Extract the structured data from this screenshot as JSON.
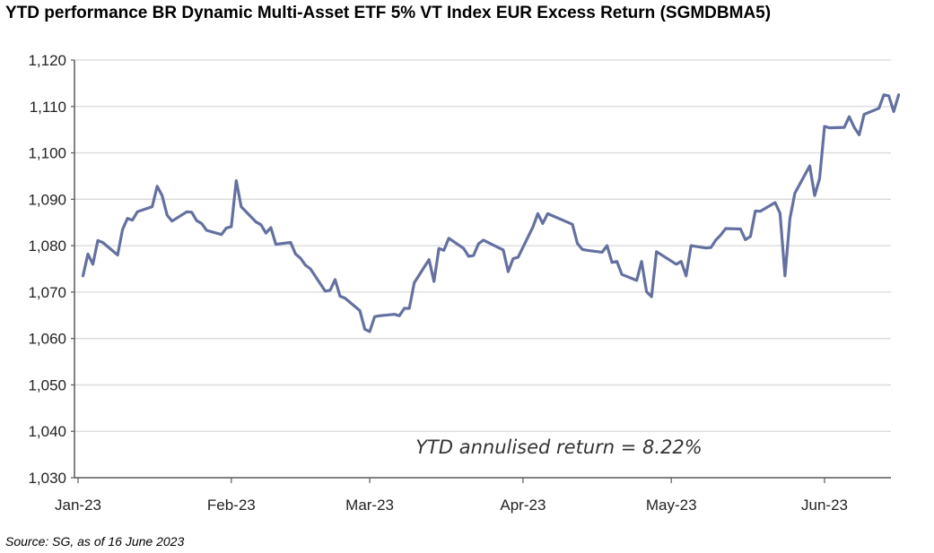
{
  "title": "YTD performance BR Dynamic Multi-Asset ETF 5% VT Index EUR Excess Return (SGMDBMA5)",
  "source": "Source: SG, as of 16 June 2023",
  "colors": {
    "line": "#6470A0",
    "grid": "#D9D9D9",
    "axis": "#595959"
  },
  "chart_data": {
    "type": "line",
    "title": "YTD performance BR Dynamic Multi-Asset ETF 5% VT Index EUR Excess Return (SGMDBMA5)",
    "xlabel": "",
    "ylabel": "",
    "ylim": [
      1030,
      1120
    ],
    "grid": true,
    "yticks": [
      "1,030",
      "1,040",
      "1,050",
      "1,060",
      "1,070",
      "1,080",
      "1,090",
      "1,100",
      "1,110",
      "1,120"
    ],
    "xticks": [
      "Jan-23",
      "Feb-23",
      "Mar-23",
      "Apr-23",
      "May-23",
      "Jun-23"
    ],
    "annotation": "YTD annulised return = 8.22%",
    "series": [
      {
        "x": [
          "2023-01-02",
          "2023-01-03",
          "2023-01-04",
          "2023-01-05",
          "2023-01-06",
          "2023-01-09",
          "2023-01-10",
          "2023-01-11",
          "2023-01-12",
          "2023-01-13",
          "2023-01-16",
          "2023-01-17",
          "2023-01-18",
          "2023-01-19",
          "2023-01-20",
          "2023-01-23",
          "2023-01-24",
          "2023-01-25",
          "2023-01-26",
          "2023-01-27",
          "2023-01-30",
          "2023-01-31",
          "2023-02-01",
          "2023-02-02",
          "2023-02-03",
          "2023-02-06",
          "2023-02-07",
          "2023-02-08",
          "2023-02-09",
          "2023-02-10",
          "2023-02-13",
          "2023-02-14",
          "2023-02-15",
          "2023-02-16",
          "2023-02-17",
          "2023-02-20",
          "2023-02-21",
          "2023-02-22",
          "2023-02-23",
          "2023-02-24",
          "2023-02-27",
          "2023-02-28",
          "2023-03-01",
          "2023-03-02",
          "2023-03-03",
          "2023-03-06",
          "2023-03-07",
          "2023-03-08",
          "2023-03-09",
          "2023-03-10",
          "2023-03-13",
          "2023-03-14",
          "2023-03-15",
          "2023-03-16",
          "2023-03-17",
          "2023-03-20",
          "2023-03-21",
          "2023-03-22",
          "2023-03-23",
          "2023-03-24",
          "2023-03-27",
          "2023-03-28",
          "2023-03-29",
          "2023-03-30",
          "2023-03-31",
          "2023-04-03",
          "2023-04-04",
          "2023-04-05",
          "2023-04-06",
          "2023-04-11",
          "2023-04-12",
          "2023-04-13",
          "2023-04-14",
          "2023-04-17",
          "2023-04-18",
          "2023-04-19",
          "2023-04-20",
          "2023-04-21",
          "2023-04-24",
          "2023-04-25",
          "2023-04-26",
          "2023-04-27",
          "2023-04-28",
          "2023-05-02",
          "2023-05-03",
          "2023-05-04",
          "2023-05-05",
          "2023-05-08",
          "2023-05-09",
          "2023-05-10",
          "2023-05-11",
          "2023-05-12",
          "2023-05-15",
          "2023-05-16",
          "2023-05-17",
          "2023-05-18",
          "2023-05-19",
          "2023-05-22",
          "2023-05-23",
          "2023-05-24",
          "2023-05-25",
          "2023-05-26",
          "2023-05-29",
          "2023-05-30",
          "2023-05-31",
          "2023-06-01",
          "2023-06-02",
          "2023-06-05",
          "2023-06-06",
          "2023-06-07",
          "2023-06-08",
          "2023-06-09",
          "2023-06-12",
          "2023-06-13",
          "2023-06-14",
          "2023-06-15",
          "2023-06-16"
        ],
        "values": [
          1073.5,
          1078.2,
          1076.0,
          1081.1,
          1080.7,
          1078.0,
          1083.5,
          1085.9,
          1085.5,
          1087.3,
          1088.4,
          1092.8,
          1090.8,
          1086.6,
          1085.3,
          1087.3,
          1087.2,
          1085.4,
          1084.8,
          1083.3,
          1082.4,
          1083.8,
          1084.1,
          1094.0,
          1088.4,
          1085.1,
          1084.5,
          1082.7,
          1083.9,
          1080.3,
          1080.7,
          1078.2,
          1077.3,
          1075.8,
          1075.0,
          1070.2,
          1070.4,
          1072.7,
          1069.1,
          1068.7,
          1066.0,
          1062.0,
          1061.5,
          1064.7,
          1064.9,
          1065.2,
          1064.9,
          1066.5,
          1066.5,
          1072.0,
          1077.0,
          1072.3,
          1079.4,
          1079.0,
          1081.6,
          1079.4,
          1077.7,
          1077.9,
          1080.4,
          1081.2,
          1079.6,
          1079.1,
          1074.4,
          1077.2,
          1077.5,
          1084.0,
          1086.9,
          1084.8,
          1086.9,
          1084.6,
          1080.5,
          1079.2,
          1079.0,
          1078.6,
          1080.0,
          1076.4,
          1076.6,
          1073.8,
          1072.5,
          1076.6,
          1070.1,
          1069.0,
          1078.7,
          1076.0,
          1076.6,
          1073.5,
          1080.0,
          1079.5,
          1079.6,
          1081.2,
          1082.3,
          1083.7,
          1083.6,
          1081.3,
          1082.0,
          1087.5,
          1087.4,
          1089.3,
          1087.0,
          1073.5,
          1085.8,
          1091.3,
          1097.2,
          1090.8,
          1094.5,
          1105.7,
          1105.4,
          1105.5,
          1107.8,
          1105.5,
          1103.9,
          1108.3,
          1109.6,
          1112.5,
          1112.3,
          1108.9,
          1112.5
        ]
      }
    ]
  }
}
